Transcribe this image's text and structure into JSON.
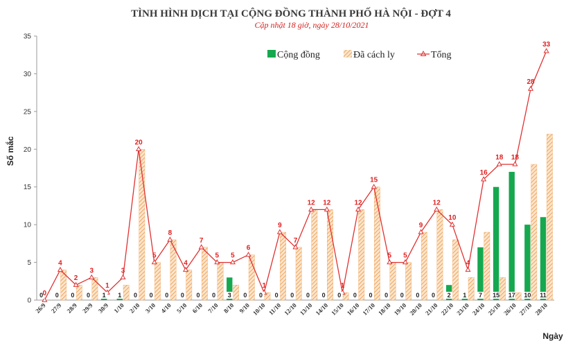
{
  "chart_data": {
    "type": "bar",
    "title": "TÌNH HÌNH DỊCH TẠI CỘNG ĐỒNG THÀNH PHỐ HÀ NỘI - ĐỢT 4",
    "subtitle": "Cập nhật 18 giờ, ngày 28/10/2021",
    "xlabel": "Ngày",
    "ylabel": "Số mắc",
    "ylim": [
      0,
      35
    ],
    "yticks": [
      0,
      5,
      10,
      15,
      20,
      25,
      30,
      35
    ],
    "grid": false,
    "legend_position": "top-right",
    "categories": [
      "26/9",
      "27/9",
      "28/9",
      "29/9",
      "30/9",
      "1/10",
      "2/10",
      "3/10",
      "4/10",
      "5/10",
      "6/10",
      "7/10",
      "8/10",
      "9/10",
      "10/10",
      "11/10",
      "12/10",
      "13/10",
      "14/10",
      "15/10",
      "16/10",
      "17/10",
      "18/10",
      "19/10",
      "20/10",
      "21/10",
      "22/10",
      "23/10",
      "24/10",
      "25/10",
      "26/10",
      "27/10",
      "28/10"
    ],
    "series": [
      {
        "name": "Cộng đồng",
        "kind": "bar",
        "color": "#16a84f",
        "values": [
          0,
          0,
          0,
          0,
          1,
          1,
          0,
          0,
          0,
          0,
          0,
          0,
          3,
          0,
          0,
          0,
          0,
          0,
          0,
          0,
          0,
          0,
          0,
          0,
          0,
          0,
          2,
          1,
          7,
          15,
          17,
          10,
          11
        ]
      },
      {
        "name": "Đã cách ly",
        "kind": "bar-hatched",
        "color": "#f0a860",
        "values": [
          0,
          4,
          2,
          3,
          0,
          2,
          20,
          5,
          8,
          4,
          7,
          5,
          2,
          6,
          1,
          9,
          7,
          12,
          12,
          1,
          12,
          15,
          5,
          5,
          9,
          12,
          8,
          3,
          9,
          3,
          1,
          18,
          22
        ]
      },
      {
        "name": "Tổng",
        "kind": "line",
        "color": "#e03030",
        "values": [
          0,
          4,
          2,
          3,
          1,
          3,
          20,
          5,
          8,
          4,
          7,
          5,
          5,
          6,
          1,
          9,
          7,
          12,
          12,
          1,
          12,
          15,
          5,
          5,
          9,
          12,
          10,
          4,
          16,
          18,
          18,
          28,
          33
        ]
      }
    ]
  }
}
